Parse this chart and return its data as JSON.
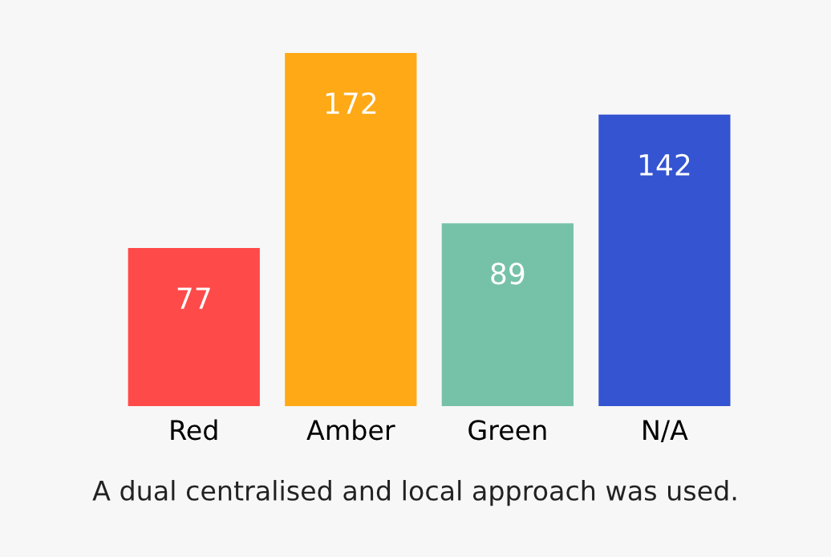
{
  "chart_data": {
    "type": "bar",
    "categories": [
      "Red",
      "Amber",
      "Green",
      "N/A"
    ],
    "values": [
      77,
      172,
      89,
      142
    ],
    "colors": [
      "#ff4a4a",
      "#ffa916",
      "#76c2a8",
      "#3454d1"
    ],
    "data_labels": true,
    "annotations": [
      "A dual centralised and local approach was used."
    ]
  }
}
